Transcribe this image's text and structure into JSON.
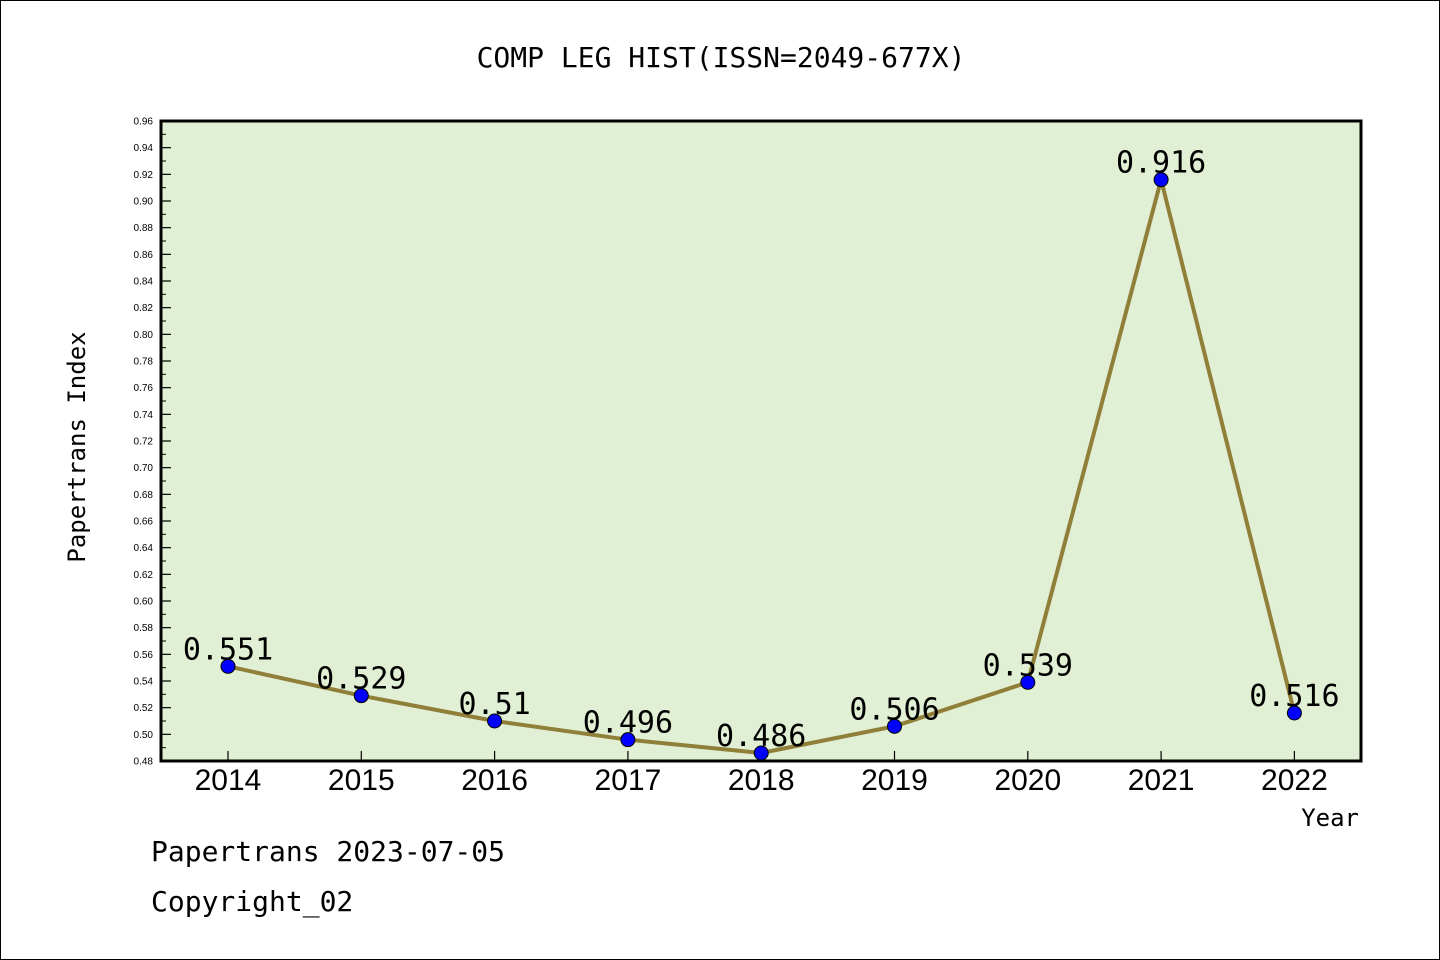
{
  "colors": {
    "plot_background": "#e1efd4",
    "line": "#8f7f39",
    "marker": "#0000ff",
    "text": "#000000"
  },
  "footer": {
    "date_line": "Papertrans 2023-07-05",
    "copyright": "Copyright_02"
  },
  "chart_data": {
    "type": "line",
    "title": "COMP LEG HIST(ISSN=2049-677X)",
    "xlabel": "Year",
    "ylabel": "Papertrans Index",
    "categories": [
      "2014",
      "2015",
      "2016",
      "2017",
      "2018",
      "2019",
      "2020",
      "2021",
      "2022"
    ],
    "values": [
      0.551,
      0.529,
      0.51,
      0.496,
      0.486,
      0.506,
      0.539,
      0.916,
      0.516
    ],
    "data_labels": [
      "0.551",
      "0.529",
      "0.51",
      "0.496",
      "0.486",
      "0.506",
      "0.539",
      "0.916",
      "0.516"
    ],
    "ylim": [
      0.48,
      0.96
    ],
    "ytick_step": 0.02,
    "yticks": [
      "0.48",
      "0.50",
      "0.52",
      "0.54",
      "0.56",
      "0.58",
      "0.60",
      "0.62",
      "0.64",
      "0.66",
      "0.68",
      "0.70",
      "0.72",
      "0.74",
      "0.76",
      "0.78",
      "0.80",
      "0.82",
      "0.84",
      "0.86",
      "0.88",
      "0.90",
      "0.92",
      "0.94",
      "0.96"
    ],
    "grid": false,
    "legend": "none"
  }
}
